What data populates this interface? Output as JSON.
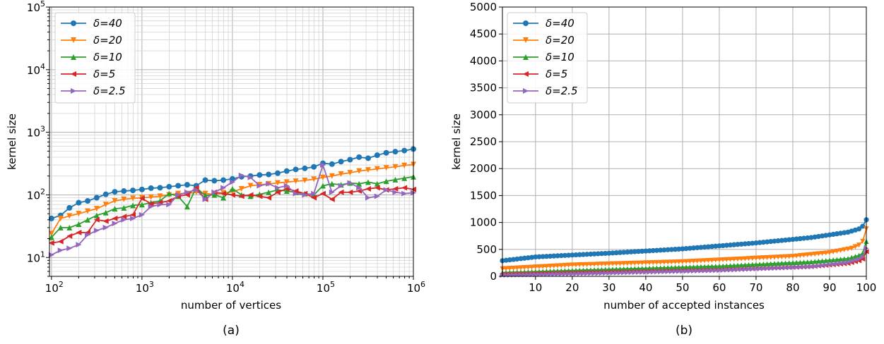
{
  "chart_data": [
    {
      "panel": "(a)",
      "type": "line",
      "xlabel": "number of vertices",
      "ylabel": "kernel size",
      "xscale": "log",
      "yscale": "log",
      "xlim": [
        95,
        1000000
      ],
      "ylim": [
        5,
        100000
      ],
      "xtick_labels": [
        "10^2",
        "10^3",
        "10^4",
        "10^5",
        "10^6"
      ],
      "ytick_labels": [
        "10^1",
        "10^2",
        "10^3",
        "10^4",
        "10^5"
      ],
      "grid": "major and minor",
      "legend": "upper-left",
      "x": [
        100,
        126,
        158,
        200,
        251,
        316,
        398,
        501,
        631,
        794,
        1000,
        1259,
        1585,
        1995,
        2512,
        3162,
        3981,
        5012,
        6310,
        7943,
        10000,
        12589,
        15849,
        19953,
        25119,
        31623,
        39811,
        50119,
        63096,
        79433,
        100000,
        125893,
        158489,
        199526,
        251189,
        316228,
        398107,
        501187,
        630957,
        794328,
        1000000
      ],
      "series": [
        {
          "name": "δ=40",
          "color": "#1f77b4",
          "marker": "circle",
          "values": [
            42,
            47,
            62,
            75,
            80,
            90,
            102,
            112,
            115,
            118,
            122,
            128,
            130,
            135,
            140,
            145,
            140,
            172,
            168,
            172,
            180,
            195,
            200,
            208,
            212,
            222,
            240,
            255,
            265,
            280,
            320,
            310,
            340,
            365,
            400,
            385,
            430,
            470,
            490,
            510,
            540
          ]
        },
        {
          "name": "δ=20",
          "color": "#ff7f0e",
          "marker": "triangle-down",
          "values": [
            24,
            42,
            46,
            50,
            55,
            60,
            70,
            80,
            85,
            88,
            90,
            92,
            95,
            100,
            105,
            105,
            110,
            105,
            102,
            108,
            112,
            125,
            140,
            145,
            150,
            155,
            160,
            165,
            170,
            178,
            190,
            200,
            215,
            225,
            240,
            250,
            260,
            270,
            280,
            295,
            305
          ]
        },
        {
          "name": "δ=10",
          "color": "#2ca02c",
          "marker": "triangle-up",
          "values": [
            21,
            30,
            30,
            34,
            40,
            47,
            52,
            60,
            62,
            68,
            70,
            75,
            80,
            105,
            95,
            65,
            130,
            98,
            100,
            90,
            125,
            100,
            95,
            102,
            110,
            120,
            115,
            110,
            105,
            100,
            140,
            150,
            145,
            155,
            150,
            160,
            150,
            165,
            175,
            185,
            195
          ]
        },
        {
          "name": "δ=5",
          "color": "#d62728",
          "marker": "triangle-left",
          "values": [
            17,
            18,
            22,
            25,
            25,
            40,
            38,
            42,
            45,
            48,
            88,
            72,
            75,
            80,
            95,
            100,
            130,
            85,
            110,
            105,
            100,
            95,
            100,
            95,
            90,
            110,
            125,
            115,
            105,
            90,
            105,
            85,
            110,
            110,
            115,
            125,
            130,
            120,
            125,
            130,
            122
          ]
        },
        {
          "name": "δ=2.5",
          "color": "#9467bd",
          "marker": "triangle-right",
          "values": [
            11,
            13,
            14,
            16,
            23,
            27,
            30,
            35,
            40,
            42,
            48,
            65,
            70,
            70,
            100,
            110,
            120,
            85,
            110,
            130,
            160,
            205,
            190,
            140,
            150,
            130,
            140,
            105,
            100,
            105,
            300,
            110,
            140,
            155,
            130,
            90,
            95,
            120,
            110,
            105,
            108
          ]
        }
      ]
    },
    {
      "panel": "(b)",
      "type": "line",
      "xlabel": "number of accepted instances",
      "ylabel": "kernel size",
      "xlim": [
        1,
        100
      ],
      "ylim": [
        0,
        5000
      ],
      "xticks": [
        10,
        20,
        30,
        40,
        50,
        60,
        70,
        80,
        90,
        100
      ],
      "yticks": [
        0,
        500,
        1000,
        1500,
        2000,
        2500,
        3000,
        3500,
        4000,
        4500,
        5000
      ],
      "grid": "major",
      "legend": "upper-left",
      "x_count": 100,
      "series": [
        {
          "name": "δ=40",
          "color": "#1f77b4",
          "marker": "circle",
          "knots": [
            [
              1,
              290
            ],
            [
              10,
              360
            ],
            [
              30,
              430
            ],
            [
              50,
              510
            ],
            [
              70,
              620
            ],
            [
              85,
              720
            ],
            [
              95,
              820
            ],
            [
              98,
              880
            ],
            [
              99,
              930
            ],
            [
              100,
              1050
            ]
          ]
        },
        {
          "name": "δ=20",
          "color": "#ff7f0e",
          "marker": "triangle-down",
          "knots": [
            [
              1,
              140
            ],
            [
              20,
              210
            ],
            [
              50,
              270
            ],
            [
              80,
              370
            ],
            [
              90,
              440
            ],
            [
              96,
              520
            ],
            [
              98,
              580
            ],
            [
              99,
              650
            ],
            [
              100,
              880
            ]
          ]
        },
        {
          "name": "δ=10",
          "color": "#2ca02c",
          "marker": "triangle-up",
          "knots": [
            [
              1,
              70
            ],
            [
              30,
              130
            ],
            [
              60,
              190
            ],
            [
              85,
              270
            ],
            [
              95,
              330
            ],
            [
              98,
              390
            ],
            [
              99,
              430
            ],
            [
              100,
              650
            ]
          ]
        },
        {
          "name": "δ=5",
          "color": "#d62728",
          "marker": "triangle-left",
          "knots": [
            [
              1,
              40
            ],
            [
              30,
              80
            ],
            [
              60,
              120
            ],
            [
              85,
              180
            ],
            [
              95,
              240
            ],
            [
              98,
              290
            ],
            [
              99,
              320
            ],
            [
              100,
              460
            ]
          ]
        },
        {
          "name": "δ=2.5",
          "color": "#9467bd",
          "marker": "triangle-right",
          "knots": [
            [
              1,
              20
            ],
            [
              30,
              60
            ],
            [
              60,
              110
            ],
            [
              85,
              180
            ],
            [
              95,
              260
            ],
            [
              98,
              320
            ],
            [
              99,
              360
            ],
            [
              100,
              520
            ]
          ]
        }
      ]
    }
  ]
}
